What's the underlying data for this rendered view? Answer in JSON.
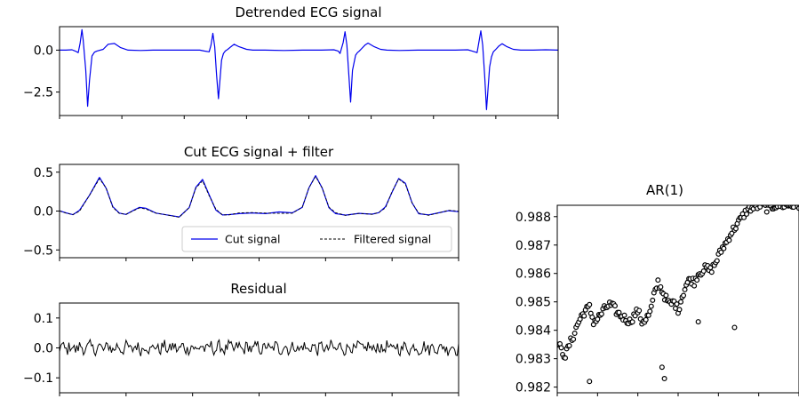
{
  "figure": {
    "background": "#ffffff",
    "colors": {
      "ecg": "#0000ee",
      "filtered": "#000000",
      "residual": "#000000",
      "scatter_edge": "#000000"
    }
  },
  "chart_data": [
    {
      "id": "detrended",
      "type": "line",
      "title": "Detrended ECG signal",
      "xlabel": "",
      "ylabel": "",
      "xlim": [
        0,
        800
      ],
      "ylim": [
        -3.9,
        1.4
      ],
      "yticks": [
        0.0,
        -2.5
      ],
      "ytick_labels": [
        "0.0",
        "−2.5"
      ],
      "xticks": [
        0,
        100,
        200,
        300,
        400,
        500,
        600,
        700,
        800
      ],
      "xtick_labels_visible": false,
      "grid": false,
      "series": [
        {
          "color": "#0000ee",
          "beats": {
            "positions": [
              50,
              265,
              480,
              695
            ],
            "r_peak": [
              1.22,
              1.0,
              1.1,
              1.15
            ],
            "s_trough": [
              -3.35,
              -2.9,
              -3.1,
              -3.55
            ]
          },
          "x": [
            0,
            10,
            20,
            25,
            30,
            33,
            36,
            38,
            42,
            45,
            48,
            52,
            56,
            60,
            70,
            78,
            88,
            98,
            110,
            130,
            150,
            170,
            200,
            225,
            232,
            240,
            243,
            246,
            249,
            252,
            255,
            260,
            263,
            266,
            270,
            275,
            280,
            288,
            300,
            310,
            330,
            360,
            390,
            420,
            440,
            447,
            450,
            455,
            458,
            461,
            464,
            467,
            470,
            475,
            478,
            481,
            485,
            490,
            495,
            505,
            515,
            525,
            545,
            575,
            605,
            635,
            655,
            662,
            670,
            673,
            676,
            679,
            682,
            685,
            690,
            693,
            696,
            700,
            705,
            710,
            718,
            728,
            740,
            760,
            780,
            800
          ],
          "y": [
            0,
            0,
            0.02,
            -0.05,
            -0.15,
            0.4,
            1.22,
            0.6,
            -1.2,
            -3.35,
            -1.8,
            -0.35,
            -0.12,
            -0.05,
            0.05,
            0.35,
            0.4,
            0.15,
            0,
            -0.02,
            0,
            0,
            0,
            0,
            -0.05,
            -0.1,
            0.3,
            1.0,
            0.2,
            -1.5,
            -2.9,
            -0.6,
            -0.2,
            -0.05,
            0.05,
            0.2,
            0.35,
            0.2,
            0.05,
            0,
            0,
            -0.02,
            0,
            0,
            0.02,
            -0.05,
            -0.2,
            0.45,
            1.1,
            0.3,
            -1.4,
            -3.1,
            -1.2,
            -0.3,
            -0.15,
            -0.05,
            0.1,
            0.3,
            0.42,
            0.2,
            0.05,
            0,
            -0.02,
            0,
            0,
            0,
            0.02,
            -0.05,
            -0.15,
            0.5,
            1.15,
            0.3,
            -1.5,
            -3.55,
            -1.0,
            -0.4,
            -0.1,
            0.05,
            0.25,
            0.38,
            0.2,
            0.05,
            0,
            0,
            0.02,
            0
          ]
        }
      ]
    },
    {
      "id": "cut",
      "type": "line",
      "title": "Cut ECG signal + filter",
      "xlabel": "",
      "ylabel": "",
      "xlim": [
        0,
        600
      ],
      "ylim": [
        -0.6,
        0.6
      ],
      "yticks": [
        0.5,
        0.0,
        -0.5
      ],
      "ytick_labels": [
        "0.5",
        "0.0",
        "−0.5"
      ],
      "xticks": [
        0,
        100,
        200,
        300,
        400,
        500,
        600
      ],
      "xtick_labels_visible": false,
      "grid": false,
      "legend": {
        "placement": "lower-right",
        "entries": [
          "Cut signal",
          "Filtered signal"
        ]
      },
      "series": [
        {
          "name": "Cut signal",
          "color": "#0000ee",
          "style": "solid",
          "x": [
            0,
            10,
            20,
            30,
            45,
            60,
            70,
            80,
            90,
            100,
            110,
            120,
            130,
            145,
            160,
            180,
            195,
            205,
            215,
            225,
            235,
            245,
            255,
            270,
            290,
            310,
            330,
            350,
            365,
            375,
            385,
            395,
            405,
            415,
            430,
            450,
            470,
            480,
            490,
            500,
            510,
            520,
            530,
            540,
            555,
            570,
            585,
            600
          ],
          "y": [
            0.0,
            -0.02,
            -0.05,
            0.0,
            0.2,
            0.43,
            0.3,
            0.05,
            -0.03,
            -0.05,
            0.0,
            0.05,
            0.03,
            -0.02,
            -0.05,
            -0.07,
            0.05,
            0.3,
            0.4,
            0.2,
            0.02,
            -0.05,
            -0.05,
            -0.03,
            -0.02,
            -0.03,
            -0.02,
            -0.03,
            0.05,
            0.3,
            0.45,
            0.3,
            0.05,
            -0.03,
            -0.05,
            -0.03,
            -0.05,
            -0.02,
            0.05,
            0.25,
            0.42,
            0.35,
            0.1,
            -0.03,
            -0.05,
            -0.03,
            0.0,
            0.0
          ]
        },
        {
          "name": "Filtered signal",
          "color": "#000000",
          "style": "dashed",
          "x": [
            0,
            10,
            20,
            30,
            45,
            60,
            70,
            80,
            90,
            100,
            110,
            120,
            130,
            145,
            160,
            180,
            195,
            205,
            215,
            225,
            235,
            245,
            255,
            270,
            290,
            310,
            330,
            350,
            365,
            375,
            385,
            395,
            405,
            415,
            430,
            450,
            470,
            480,
            490,
            500,
            510,
            520,
            530,
            540,
            555,
            570,
            585,
            600
          ],
          "y": [
            0.0,
            -0.02,
            -0.05,
            0.0,
            0.2,
            0.42,
            0.3,
            0.05,
            -0.03,
            -0.05,
            0.0,
            0.05,
            0.03,
            -0.02,
            -0.05,
            -0.07,
            0.05,
            0.3,
            0.39,
            0.2,
            0.02,
            -0.05,
            -0.05,
            -0.03,
            -0.02,
            -0.03,
            -0.02,
            -0.03,
            0.05,
            0.3,
            0.44,
            0.3,
            0.05,
            -0.03,
            -0.05,
            -0.03,
            -0.05,
            -0.02,
            0.05,
            0.25,
            0.41,
            0.35,
            0.1,
            -0.03,
            -0.05,
            -0.03,
            0.0,
            0.0
          ]
        }
      ]
    },
    {
      "id": "residual",
      "type": "line",
      "title": "Residual",
      "xlabel": "",
      "ylabel": "",
      "xlim": [
        0,
        600
      ],
      "ylim": [
        -0.15,
        0.15
      ],
      "yticks": [
        0.1,
        0.0,
        -0.1
      ],
      "ytick_labels": [
        "0.1",
        "0.0",
        "−0.1"
      ],
      "xticks": [
        0,
        100,
        200,
        300,
        400,
        500,
        600
      ],
      "xtick_labels_visible": false,
      "grid": false,
      "series": [
        {
          "color": "#000000",
          "amplitude": 0.02,
          "x": [
            0,
            600
          ],
          "y": [
            0.0,
            0.0
          ]
        }
      ]
    },
    {
      "id": "ar1",
      "type": "scatter",
      "title": "AR(1)",
      "xlabel": "",
      "ylabel": "",
      "xlim": [
        0,
        300
      ],
      "ylim": [
        0.9818,
        0.9884
      ],
      "yticks": [
        0.988,
        0.987,
        0.986,
        0.985,
        0.984,
        0.983,
        0.982
      ],
      "ytick_labels": [
        "0.988",
        "0.987",
        "0.986",
        "0.985",
        "0.984",
        "0.983",
        "0.982"
      ],
      "xticks": [
        0,
        50,
        100,
        150,
        200,
        250,
        300
      ],
      "xtick_labels_visible": false,
      "grid": false,
      "marker": "open-circle",
      "series": [
        {
          "color": "#000000",
          "x": [
            0,
            5,
            10,
            15,
            20,
            25,
            30,
            35,
            40,
            45,
            50,
            55,
            60,
            65,
            70,
            75,
            80,
            85,
            90,
            95,
            100,
            105,
            110,
            115,
            120,
            125,
            130,
            135,
            140,
            145,
            150,
            155,
            160,
            165,
            170,
            175,
            180,
            185,
            190,
            195,
            200,
            205,
            210,
            215,
            220,
            225,
            230,
            235,
            240,
            245,
            250,
            255,
            260,
            265,
            270,
            275,
            280,
            285,
            290,
            295,
            300
          ],
          "y": [
            0.9836,
            0.9833,
            0.9831,
            0.9835,
            0.9838,
            0.9842,
            0.9845,
            0.9847,
            0.9848,
            0.9843,
            0.9844,
            0.9846,
            0.9848,
            0.9849,
            0.9848,
            0.9846,
            0.9845,
            0.9844,
            0.9843,
            0.9845,
            0.9847,
            0.9843,
            0.9844,
            0.9846,
            0.9852,
            0.9857,
            0.9854,
            0.9851,
            0.9849,
            0.985,
            0.9847,
            0.9852,
            0.9856,
            0.9858,
            0.9857,
            0.986,
            0.9861,
            0.9862,
            0.9861,
            0.9863,
            0.9866,
            0.9869,
            0.9871,
            0.9874,
            0.9876,
            0.9878,
            0.988,
            0.9882,
            0.9883,
            0.9883,
            0.9884,
            0.9884,
            0.9883,
            0.9883,
            0.9884,
            0.9884,
            0.9884,
            0.9884,
            0.9884,
            0.9884,
            0.9884
          ]
        }
      ]
    }
  ]
}
